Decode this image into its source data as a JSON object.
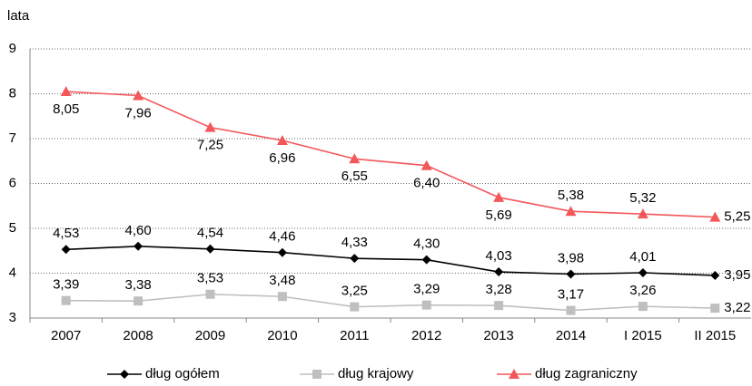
{
  "chart_data": {
    "type": "line",
    "y_label": "lata",
    "categories": [
      "2007",
      "2008",
      "2009",
      "2010",
      "2011",
      "2012",
      "2013",
      "2014",
      "I 2015",
      "II 2015"
    ],
    "series": [
      {
        "name": "dług ogółem",
        "color": "#000000",
        "marker": "diamond",
        "values": [
          4.53,
          4.6,
          4.54,
          4.46,
          4.33,
          4.3,
          4.03,
          3.98,
          4.01,
          3.95
        ],
        "value_labels": [
          "4,53",
          "4,60",
          "4,54",
          "4,46",
          "4,33",
          "4,30",
          "4,03",
          "3,98",
          "4,01",
          "3,95"
        ]
      },
      {
        "name": "dług krajowy",
        "color": "#bfbfbf",
        "marker": "square",
        "values": [
          3.39,
          3.38,
          3.53,
          3.48,
          3.25,
          3.29,
          3.28,
          3.17,
          3.26,
          3.22
        ],
        "value_labels": [
          "3,39",
          "3,38",
          "3,53",
          "3,48",
          "3,25",
          "3,29",
          "3,28",
          "3,17",
          "3,26",
          "3,22"
        ]
      },
      {
        "name": "dług zagraniczny",
        "color": "#f4575a",
        "marker": "triangle",
        "values": [
          8.05,
          7.96,
          7.25,
          6.96,
          6.55,
          6.4,
          5.69,
          5.38,
          5.32,
          5.25
        ],
        "value_labels": [
          "8,05",
          "7,96",
          "7,25",
          "6,96",
          "6,55",
          "6,40",
          "5,69",
          "5,38",
          "5,32",
          "5,25"
        ]
      }
    ],
    "ylim": [
      3,
      9
    ],
    "yticks": [
      3,
      4,
      5,
      6,
      7,
      8,
      9
    ],
    "grid": true,
    "legend": "bottom"
  }
}
